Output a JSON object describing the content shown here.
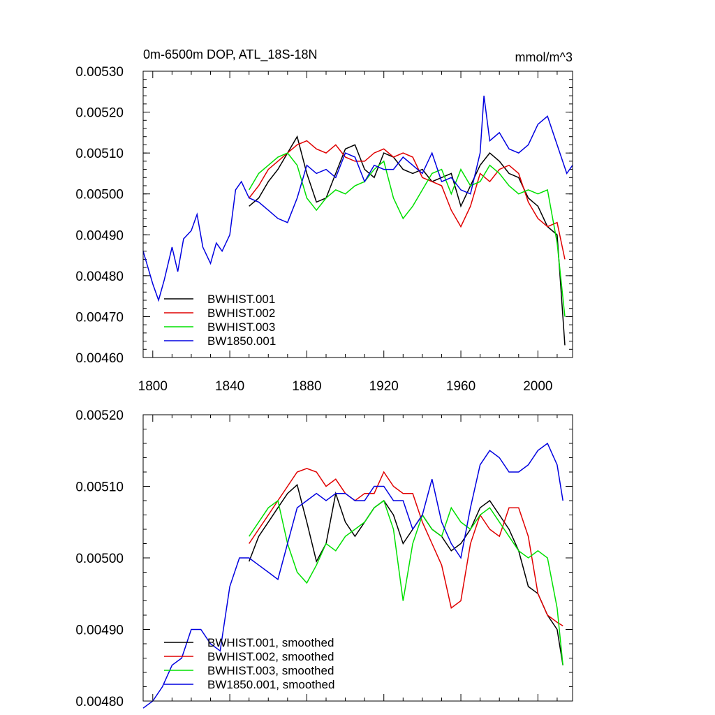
{
  "colors": {
    "BWHIST.001": "#000000",
    "BWHIST.002": "#e00000",
    "BWHIST.003": "#00e000",
    "BW1850.001": "#0000e0"
  },
  "chart_data": [
    {
      "type": "line",
      "title": "0m-6500m DOP, ATL_18S-18N",
      "title_right": "mmol/m^3",
      "xlim": [
        1795,
        2018
      ],
      "ylim": [
        0.0046,
        0.0053
      ],
      "x_ticks": [
        1800,
        1840,
        1880,
        1920,
        1960,
        2000
      ],
      "y_ticks": [
        "0.00530",
        "0.00520",
        "0.00510",
        "0.00500",
        "0.00490",
        "0.00480",
        "0.00470",
        "0.00460"
      ],
      "legend": [
        "BWHIST.001",
        "BWHIST.002",
        "BWHIST.003",
        "BW1850.001"
      ],
      "legend_placement": "bottom-left",
      "series": [
        {
          "name": "BWHIST.001",
          "x": [
            1850,
            1855,
            1860,
            1865,
            1870,
            1875,
            1880,
            1885,
            1890,
            1895,
            1900,
            1905,
            1910,
            1915,
            1920,
            1925,
            1930,
            1935,
            1940,
            1945,
            1950,
            1955,
            1960,
            1965,
            1970,
            1975,
            1980,
            1985,
            1990,
            1995,
            2000,
            2005,
            2010,
            2014
          ],
          "y": [
            0.00497,
            0.00499,
            0.00503,
            0.00506,
            0.0051,
            0.00514,
            0.00505,
            0.00498,
            0.00499,
            0.00505,
            0.00511,
            0.00512,
            0.00506,
            0.00504,
            0.0051,
            0.00509,
            0.00506,
            0.00505,
            0.00506,
            0.00503,
            0.00504,
            0.00505,
            0.00497,
            0.00502,
            0.00507,
            0.0051,
            0.00508,
            0.00505,
            0.00504,
            0.00499,
            0.00497,
            0.00492,
            0.0049,
            0.00463
          ]
        },
        {
          "name": "BWHIST.002",
          "x": [
            1850,
            1855,
            1860,
            1865,
            1870,
            1875,
            1880,
            1885,
            1890,
            1895,
            1900,
            1905,
            1910,
            1915,
            1920,
            1925,
            1930,
            1935,
            1940,
            1945,
            1950,
            1955,
            1960,
            1965,
            1970,
            1975,
            1980,
            1985,
            1990,
            1995,
            2000,
            2005,
            2010,
            2014
          ],
          "y": [
            0.00499,
            0.00502,
            0.00506,
            0.00508,
            0.0051,
            0.00512,
            0.00513,
            0.00511,
            0.0051,
            0.00512,
            0.00509,
            0.00508,
            0.00508,
            0.0051,
            0.00511,
            0.00509,
            0.0051,
            0.00509,
            0.00504,
            0.00503,
            0.00502,
            0.00496,
            0.00492,
            0.00497,
            0.00505,
            0.00503,
            0.00506,
            0.00507,
            0.00505,
            0.00498,
            0.00494,
            0.00492,
            0.00493,
            0.00484
          ]
        },
        {
          "name": "BWHIST.003",
          "x": [
            1850,
            1855,
            1860,
            1865,
            1870,
            1875,
            1880,
            1885,
            1890,
            1895,
            1900,
            1905,
            1910,
            1915,
            1920,
            1925,
            1930,
            1935,
            1940,
            1945,
            1950,
            1955,
            1960,
            1965,
            1970,
            1975,
            1980,
            1985,
            1990,
            1995,
            2000,
            2005,
            2010,
            2014
          ],
          "y": [
            0.00501,
            0.00505,
            0.00507,
            0.00509,
            0.0051,
            0.00507,
            0.00499,
            0.00496,
            0.00499,
            0.00501,
            0.005,
            0.00502,
            0.00503,
            0.00506,
            0.00508,
            0.00499,
            0.00494,
            0.00497,
            0.00501,
            0.00505,
            0.00506,
            0.005,
            0.00506,
            0.00502,
            0.00503,
            0.00507,
            0.00505,
            0.00502,
            0.005,
            0.00501,
            0.005,
            0.00501,
            0.00488,
            0.0047
          ]
        },
        {
          "name": "BW1850.001",
          "x": [
            1795,
            1800,
            1803,
            1806,
            1810,
            1813,
            1816,
            1820,
            1823,
            1826,
            1830,
            1833,
            1836,
            1840,
            1843,
            1846,
            1850,
            1855,
            1860,
            1865,
            1870,
            1875,
            1880,
            1885,
            1890,
            1895,
            1900,
            1905,
            1910,
            1915,
            1920,
            1925,
            1930,
            1935,
            1940,
            1945,
            1950,
            1955,
            1960,
            1965,
            1970,
            1972,
            1975,
            1980,
            1985,
            1990,
            1995,
            2000,
            2005,
            2010,
            2015,
            2018
          ],
          "y": [
            0.00486,
            0.00478,
            0.00474,
            0.00479,
            0.00487,
            0.00481,
            0.00489,
            0.00491,
            0.00495,
            0.00487,
            0.00483,
            0.00488,
            0.00486,
            0.0049,
            0.00501,
            0.00503,
            0.00499,
            0.00498,
            0.00496,
            0.00494,
            0.00493,
            0.00499,
            0.00507,
            0.00505,
            0.00506,
            0.00504,
            0.0051,
            0.00509,
            0.00503,
            0.00507,
            0.00506,
            0.00506,
            0.00509,
            0.00507,
            0.00505,
            0.0051,
            0.00503,
            0.00504,
            0.00501,
            0.005,
            0.0051,
            0.00524,
            0.00513,
            0.00515,
            0.00511,
            0.0051,
            0.00512,
            0.00517,
            0.00519,
            0.00512,
            0.00505,
            0.00507
          ]
        }
      ]
    },
    {
      "type": "line",
      "title": "",
      "xlim": [
        1795,
        2018
      ],
      "ylim": [
        0.0048,
        0.0052
      ],
      "x_ticks": [
        1800,
        1840,
        1880,
        1920,
        1960,
        2000
      ],
      "y_ticks": [
        "0.00520",
        "0.00510",
        "0.00500",
        "0.00490",
        "0.00480"
      ],
      "legend": [
        "BWHIST.001, smoothed",
        "BWHIST.002, smoothed",
        "BWHIST.003, smoothed",
        "BW1850.001, smoothed"
      ],
      "legend_placement": "bottom-left",
      "series": [
        {
          "name": "BWHIST.001, smoothed",
          "x": [
            1850,
            1855,
            1860,
            1865,
            1870,
            1875,
            1880,
            1885,
            1890,
            1895,
            1900,
            1905,
            1910,
            1915,
            1920,
            1925,
            1930,
            1935,
            1940,
            1945,
            1950,
            1955,
            1960,
            1965,
            1970,
            1975,
            1980,
            1985,
            1990,
            1995,
            2000,
            2005,
            2010,
            2013
          ],
          "y": [
            0.004995,
            0.00503,
            0.00505,
            0.00507,
            0.00509,
            0.005102,
            0.00505,
            0.004995,
            0.00502,
            0.00509,
            0.00505,
            0.00503,
            0.00505,
            0.00507,
            0.00508,
            0.00506,
            0.00502,
            0.00504,
            0.00506,
            0.00504,
            0.00503,
            0.00501,
            0.00502,
            0.00504,
            0.00507,
            0.00508,
            0.00506,
            0.00504,
            0.00501,
            0.00496,
            0.00495,
            0.00492,
            0.0049,
            0.00485
          ]
        },
        {
          "name": "BWHIST.002, smoothed",
          "x": [
            1850,
            1855,
            1860,
            1865,
            1870,
            1875,
            1880,
            1885,
            1890,
            1895,
            1900,
            1905,
            1910,
            1915,
            1920,
            1925,
            1930,
            1935,
            1940,
            1945,
            1950,
            1955,
            1960,
            1965,
            1970,
            1975,
            1980,
            1985,
            1990,
            1995,
            2000,
            2005,
            2010,
            2013
          ],
          "y": [
            0.00502,
            0.00504,
            0.00506,
            0.00508,
            0.0051,
            0.00512,
            0.005125,
            0.00512,
            0.0051,
            0.00511,
            0.00509,
            0.00508,
            0.00509,
            0.00509,
            0.00512,
            0.0051,
            0.00509,
            0.00509,
            0.00505,
            0.00502,
            0.00499,
            0.00493,
            0.00494,
            0.00502,
            0.00506,
            0.00504,
            0.00503,
            0.00507,
            0.00507,
            0.00503,
            0.00495,
            0.00492,
            0.00491,
            0.004905
          ]
        },
        {
          "name": "BWHIST.003, smoothed",
          "x": [
            1850,
            1855,
            1860,
            1865,
            1870,
            1875,
            1880,
            1885,
            1890,
            1895,
            1900,
            1905,
            1910,
            1915,
            1920,
            1925,
            1930,
            1935,
            1940,
            1945,
            1950,
            1955,
            1960,
            1965,
            1970,
            1975,
            1980,
            1985,
            1990,
            1995,
            2000,
            2005,
            2010,
            2013
          ],
          "y": [
            0.00503,
            0.00505,
            0.00507,
            0.00508,
            0.00502,
            0.00498,
            0.004965,
            0.00499,
            0.00502,
            0.00501,
            0.00503,
            0.00504,
            0.00505,
            0.00507,
            0.00508,
            0.00504,
            0.00494,
            0.00502,
            0.00506,
            0.00504,
            0.00503,
            0.00507,
            0.00505,
            0.00504,
            0.00506,
            0.00507,
            0.00505,
            0.00503,
            0.00501,
            0.005,
            0.00501,
            0.005,
            0.00493,
            0.00485
          ]
        },
        {
          "name": "BW1850.001, smoothed",
          "x": [
            1795,
            1800,
            1805,
            1810,
            1815,
            1820,
            1825,
            1830,
            1835,
            1840,
            1845,
            1850,
            1855,
            1860,
            1865,
            1870,
            1875,
            1880,
            1885,
            1890,
            1895,
            1900,
            1905,
            1910,
            1915,
            1920,
            1925,
            1930,
            1935,
            1940,
            1945,
            1950,
            1955,
            1960,
            1965,
            1970,
            1975,
            1980,
            1985,
            1990,
            1995,
            2000,
            2005,
            2010,
            2013
          ],
          "y": [
            0.00479,
            0.0048,
            0.00482,
            0.00485,
            0.00486,
            0.0049,
            0.0049,
            0.00488,
            0.00487,
            0.00496,
            0.005,
            0.005,
            0.00499,
            0.00498,
            0.00497,
            0.00502,
            0.00507,
            0.00508,
            0.00509,
            0.00508,
            0.00509,
            0.00509,
            0.00508,
            0.00508,
            0.0051,
            0.0051,
            0.00508,
            0.00508,
            0.00504,
            0.00506,
            0.00511,
            0.00505,
            0.00502,
            0.005,
            0.00507,
            0.00513,
            0.00515,
            0.00514,
            0.00512,
            0.00512,
            0.00513,
            0.00515,
            0.00516,
            0.00513,
            0.00508
          ]
        }
      ]
    }
  ]
}
